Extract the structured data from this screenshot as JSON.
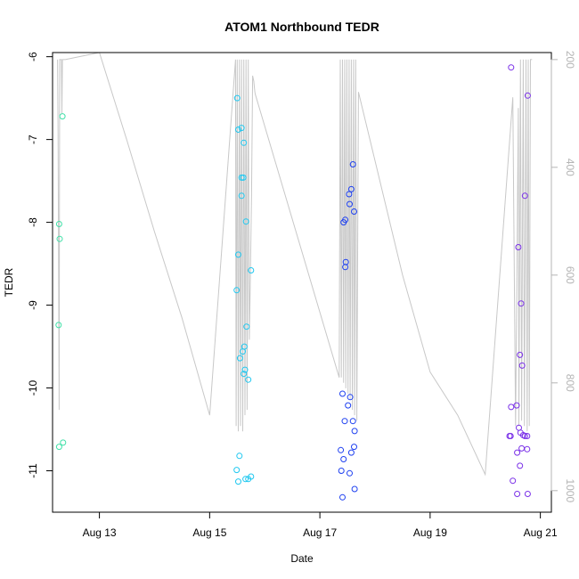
{
  "chart_data": {
    "type": "scatter",
    "title": "ATOM1 Northbound TEDR",
    "xlabel": "Date",
    "ylabel": "TEDR",
    "x_ticks": [
      {
        "label": "Aug 13",
        "value": 13
      },
      {
        "label": "Aug 15",
        "value": 15
      },
      {
        "label": "Aug 17",
        "value": 17
      },
      {
        "label": "Aug 19",
        "value": 19
      },
      {
        "label": "Aug 21",
        "value": 21
      }
    ],
    "xlim": [
      12.15,
      21.2
    ],
    "ylim": [
      -11.5,
      -5.95
    ],
    "y_ticks": [
      -11,
      -10,
      -9,
      -8,
      -7,
      -6
    ],
    "y_tick_labels": [
      "-11",
      "-10",
      "-9",
      "-8",
      "-7",
      "-6"
    ],
    "y2lim": [
      1040,
      187
    ],
    "y2_ticks": [
      200,
      400,
      600,
      800,
      1000
    ],
    "y2_tick_labels": [
      "200",
      "400",
      "600",
      "800",
      "1000"
    ],
    "colors": {
      "points_seg1": "#40e0a8",
      "points_seg2": "#20c8f0",
      "points_seg3": "#1e40f0",
      "points_seg4": "#7a30e8",
      "depth_line": "#c8c8c8",
      "axis": "#000000",
      "y2_axis": "#b4b4b4"
    },
    "series": [
      {
        "color_key": "points_seg1",
        "points": [
          [
            12.33,
            -6.72
          ],
          [
            12.27,
            -8.02
          ],
          [
            12.28,
            -8.2
          ],
          [
            12.26,
            -9.24
          ],
          [
            12.27,
            -10.71
          ],
          [
            12.34,
            -10.66
          ]
        ]
      },
      {
        "color_key": "points_seg2",
        "points": [
          [
            15.5,
            -6.5
          ],
          [
            15.52,
            -6.88
          ],
          [
            15.58,
            -6.86
          ],
          [
            15.62,
            -7.04
          ],
          [
            15.58,
            -7.46
          ],
          [
            15.61,
            -7.46
          ],
          [
            15.58,
            -7.68
          ],
          [
            15.66,
            -7.99
          ],
          [
            15.52,
            -8.39
          ],
          [
            15.75,
            -8.58
          ],
          [
            15.49,
            -8.82
          ],
          [
            15.67,
            -9.26
          ],
          [
            15.63,
            -9.5
          ],
          [
            15.6,
            -9.56
          ],
          [
            15.55,
            -9.64
          ],
          [
            15.64,
            -9.78
          ],
          [
            15.62,
            -9.83
          ],
          [
            15.7,
            -9.9
          ],
          [
            15.54,
            -10.82
          ],
          [
            15.49,
            -10.99
          ],
          [
            15.75,
            -11.07
          ],
          [
            15.65,
            -11.1
          ],
          [
            15.7,
            -11.1
          ],
          [
            15.52,
            -11.13
          ]
        ]
      },
      {
        "color_key": "points_seg3",
        "points": [
          [
            17.6,
            -7.3
          ],
          [
            17.57,
            -7.6
          ],
          [
            17.53,
            -7.66
          ],
          [
            17.54,
            -7.78
          ],
          [
            17.62,
            -7.87
          ],
          [
            17.46,
            -7.97
          ],
          [
            17.43,
            -8.0
          ],
          [
            17.47,
            -8.48
          ],
          [
            17.46,
            -8.54
          ],
          [
            17.41,
            -10.07
          ],
          [
            17.55,
            -10.11
          ],
          [
            17.51,
            -10.21
          ],
          [
            17.6,
            -10.4
          ],
          [
            17.45,
            -10.4
          ],
          [
            17.63,
            -10.52
          ],
          [
            17.62,
            -10.71
          ],
          [
            17.38,
            -10.75
          ],
          [
            17.57,
            -10.78
          ],
          [
            17.43,
            -10.86
          ],
          [
            17.39,
            -11.0
          ],
          [
            17.54,
            -11.03
          ],
          [
            17.63,
            -11.22
          ],
          [
            17.41,
            -11.32
          ]
        ]
      },
      {
        "color_key": "points_seg4",
        "points": [
          [
            20.47,
            -6.13
          ],
          [
            20.77,
            -6.47
          ],
          [
            20.72,
            -7.68
          ],
          [
            20.6,
            -8.3
          ],
          [
            20.65,
            -8.98
          ],
          [
            20.63,
            -9.6
          ],
          [
            20.67,
            -9.73
          ],
          [
            20.47,
            -10.23
          ],
          [
            20.57,
            -10.21
          ],
          [
            20.61,
            -10.48
          ],
          [
            20.64,
            -10.54
          ],
          [
            20.69,
            -10.57
          ],
          [
            20.76,
            -10.58
          ],
          [
            20.72,
            -10.58
          ],
          [
            20.44,
            -10.58
          ],
          [
            20.46,
            -10.58
          ],
          [
            20.66,
            -10.73
          ],
          [
            20.76,
            -10.74
          ],
          [
            20.58,
            -10.78
          ],
          [
            20.63,
            -10.94
          ],
          [
            20.5,
            -11.12
          ],
          [
            20.58,
            -11.28
          ],
          [
            20.77,
            -11.28
          ]
        ]
      }
    ],
    "depth_series": {
      "x": [
        12.24,
        12.25,
        12.26,
        12.27,
        12.28,
        12.29,
        12.3,
        12.31,
        12.32,
        12.33,
        12.34,
        12.36,
        12.38,
        13.0,
        13.5,
        14.0,
        14.5,
        15.0,
        15.47,
        15.48,
        15.5,
        15.52,
        15.54,
        15.56,
        15.58,
        15.6,
        15.62,
        15.64,
        15.66,
        15.68,
        15.7,
        15.72,
        15.74,
        15.76,
        15.78,
        15.8,
        15.82,
        15.83,
        17.35,
        17.37,
        17.39,
        17.41,
        17.43,
        17.45,
        17.47,
        17.49,
        17.51,
        17.53,
        17.55,
        17.57,
        17.59,
        17.61,
        17.63,
        17.65,
        17.67,
        17.7,
        18.5,
        19.0,
        19.5,
        20.0,
        20.5,
        20.55,
        20.6,
        20.61,
        20.64,
        20.66,
        20.69,
        20.71,
        20.74,
        20.76,
        20.78,
        20.8,
        20.82,
        20.85
      ],
      "y": [
        200,
        340,
        600,
        850,
        200,
        200,
        200,
        200,
        300,
        200,
        200,
        200,
        200,
        187,
        350,
        520,
        680,
        860,
        200,
        880,
        200,
        890,
        200,
        880,
        200,
        890,
        200,
        860,
        200,
        850,
        200,
        720,
        600,
        450,
        230,
        240,
        260,
        265,
        790,
        200,
        790,
        200,
        800,
        200,
        810,
        200,
        820,
        200,
        830,
        200,
        850,
        200,
        860,
        200,
        870,
        260,
        600,
        780,
        860,
        970,
        270,
        880,
        290,
        880,
        200,
        870,
        200,
        880,
        200,
        890,
        200,
        880,
        200,
        200
      ]
    }
  }
}
